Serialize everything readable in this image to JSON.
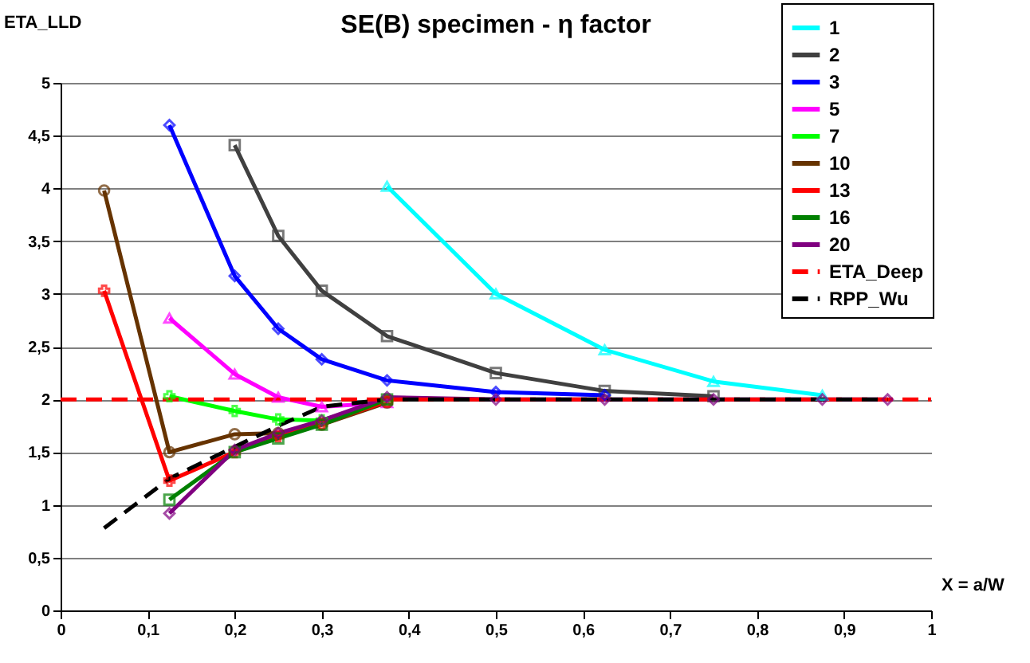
{
  "chart_data": {
    "type": "line",
    "title": "SE(B) specimen - η factor",
    "xlabel": "X = a/W",
    "ylabel": "ETA_LLD",
    "x": [
      0.05,
      0.125,
      0.2,
      0.25,
      0.3,
      0.375,
      0.5,
      0.625,
      0.75,
      0.875,
      0.95
    ],
    "series": [
      {
        "name": "1",
        "color": "#00ffff",
        "marker": "triangle",
        "values": [
          null,
          null,
          null,
          null,
          null,
          4.02,
          3.0,
          2.47,
          2.17,
          2.04,
          null
        ]
      },
      {
        "name": "2",
        "color": "#404040",
        "marker": "square",
        "values": [
          null,
          null,
          4.41,
          3.55,
          3.03,
          2.6,
          2.25,
          2.08,
          2.03,
          null,
          null
        ]
      },
      {
        "name": "3",
        "color": "#0000ff",
        "marker": "diamond",
        "values": [
          null,
          4.6,
          3.17,
          2.67,
          2.38,
          2.18,
          2.07,
          2.04,
          null,
          null,
          null
        ]
      },
      {
        "name": "5",
        "color": "#ff00ff",
        "marker": "triangle",
        "values": [
          null,
          2.77,
          2.24,
          2.02,
          1.93,
          1.97,
          null,
          null,
          null,
          null,
          null
        ]
      },
      {
        "name": "7",
        "color": "#00ff00",
        "marker": "cross",
        "values": [
          null,
          2.03,
          1.89,
          1.81,
          1.8,
          2.0,
          null,
          null,
          null,
          null,
          null
        ]
      },
      {
        "name": "10",
        "color": "#663300",
        "marker": "circle",
        "values": [
          3.98,
          1.5,
          1.67,
          1.68,
          1.76,
          1.97,
          null,
          null,
          null,
          null,
          null
        ]
      },
      {
        "name": "13",
        "color": "#ff0000",
        "marker": "cross",
        "values": [
          3.03,
          1.23,
          1.5,
          1.65,
          1.77,
          1.98,
          null,
          null,
          null,
          null,
          null
        ]
      },
      {
        "name": "16",
        "color": "#008000",
        "marker": "square",
        "values": [
          null,
          1.05,
          1.5,
          1.63,
          1.76,
          2.0,
          null,
          null,
          null,
          null,
          null
        ]
      },
      {
        "name": "20",
        "color": "#800080",
        "marker": "diamond",
        "values": [
          null,
          0.92,
          1.52,
          1.68,
          1.8,
          2.02,
          2.0,
          2.0,
          2.0,
          2.0,
          2.0
        ]
      },
      {
        "name": "ETA_Deep",
        "color": "#ff0000",
        "marker": "none",
        "line_style": "dashed",
        "x": [
          0,
          1
        ],
        "values": [
          2.0,
          2.0
        ]
      },
      {
        "name": "RPP_Wu",
        "color": "#000000",
        "marker": "none",
        "line_style": "dashed",
        "x": [
          0.05,
          0.125,
          0.2,
          0.25,
          0.3,
          0.375,
          0.5,
          0.625,
          0.75,
          0.875,
          0.95
        ],
        "values": [
          0.78,
          1.25,
          1.55,
          1.75,
          1.93,
          2.0,
          2.0,
          2.0,
          2.0,
          2.0,
          2.0
        ]
      }
    ],
    "xlim": [
      0,
      1
    ],
    "xticks": [
      0,
      {
        "value": 0.1,
        "label": "0,1"
      },
      {
        "value": 0.2,
        "label": "0,2"
      },
      {
        "value": 0.3,
        "label": "0,3"
      },
      {
        "value": 0.4,
        "label": "0,4"
      },
      {
        "value": 0.5,
        "label": "0,5"
      },
      {
        "value": 0.6,
        "label": "0,6"
      },
      {
        "value": 0.7,
        "label": "0,7"
      },
      {
        "value": 0.8,
        "label": "0,8"
      },
      {
        "value": 0.9,
        "label": "0,9"
      },
      1
    ],
    "ylim": [
      0,
      5
    ],
    "yticks": [
      0,
      {
        "value": 0.5,
        "label": "0,5"
      },
      1,
      {
        "value": 1.5,
        "label": "1,5"
      },
      2,
      {
        "value": 2.5,
        "label": "2,5"
      },
      3,
      {
        "value": 3.5,
        "label": "3,5"
      },
      4,
      {
        "value": 4.5,
        "label": "4,5"
      },
      5
    ],
    "grid": "y",
    "legend": "top right"
  }
}
